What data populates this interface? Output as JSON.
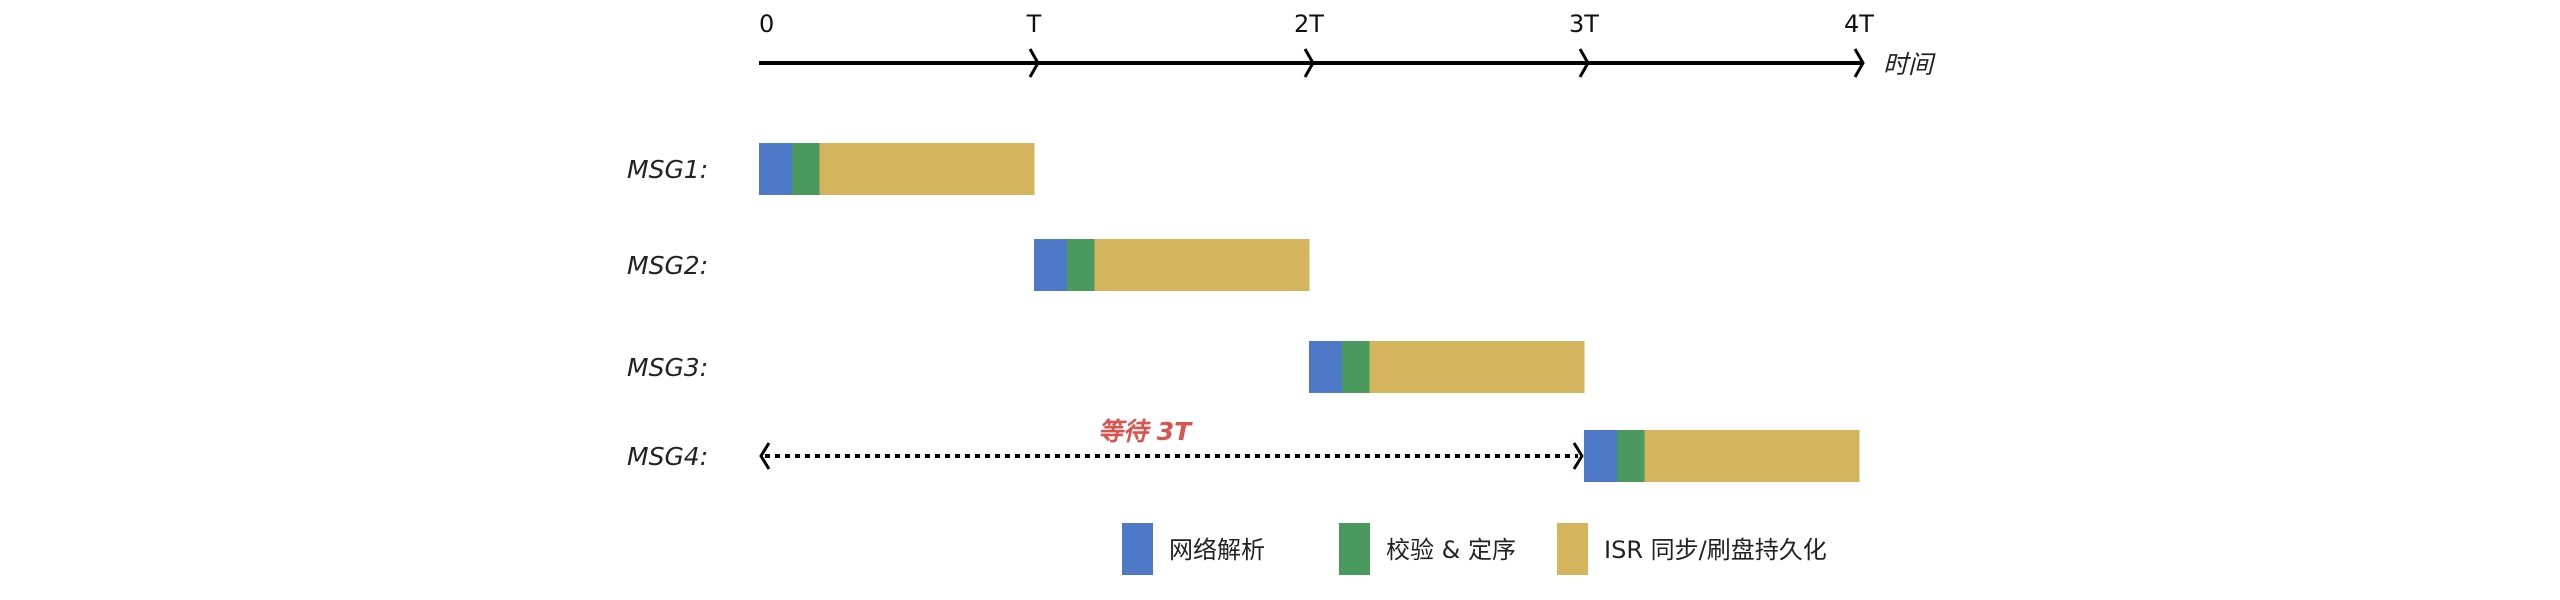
{
  "axis": {
    "ticks": [
      "0",
      "T",
      "2T",
      "3T",
      "4T"
    ],
    "label": "时间"
  },
  "phases": [
    {
      "name": "网络解析",
      "color": "#4e79c8",
      "duration_T": 0.12
    },
    {
      "name": "校验 & 定序",
      "color": "#4a9a60",
      "duration_T": 0.1
    },
    {
      "name": "ISR 同步/刷盘持久化",
      "color": "#d4b45c",
      "duration_T": 0.78
    }
  ],
  "messages": [
    {
      "label": "MSG1:",
      "start_T": 0
    },
    {
      "label": "MSG2:",
      "start_T": 1
    },
    {
      "label": "MSG3:",
      "start_T": 2
    },
    {
      "label": "MSG4:",
      "start_T": 3
    }
  ],
  "wait": {
    "label": "等待 3T",
    "from_T": 0,
    "to_T": 3,
    "color": "#d9534f"
  }
}
